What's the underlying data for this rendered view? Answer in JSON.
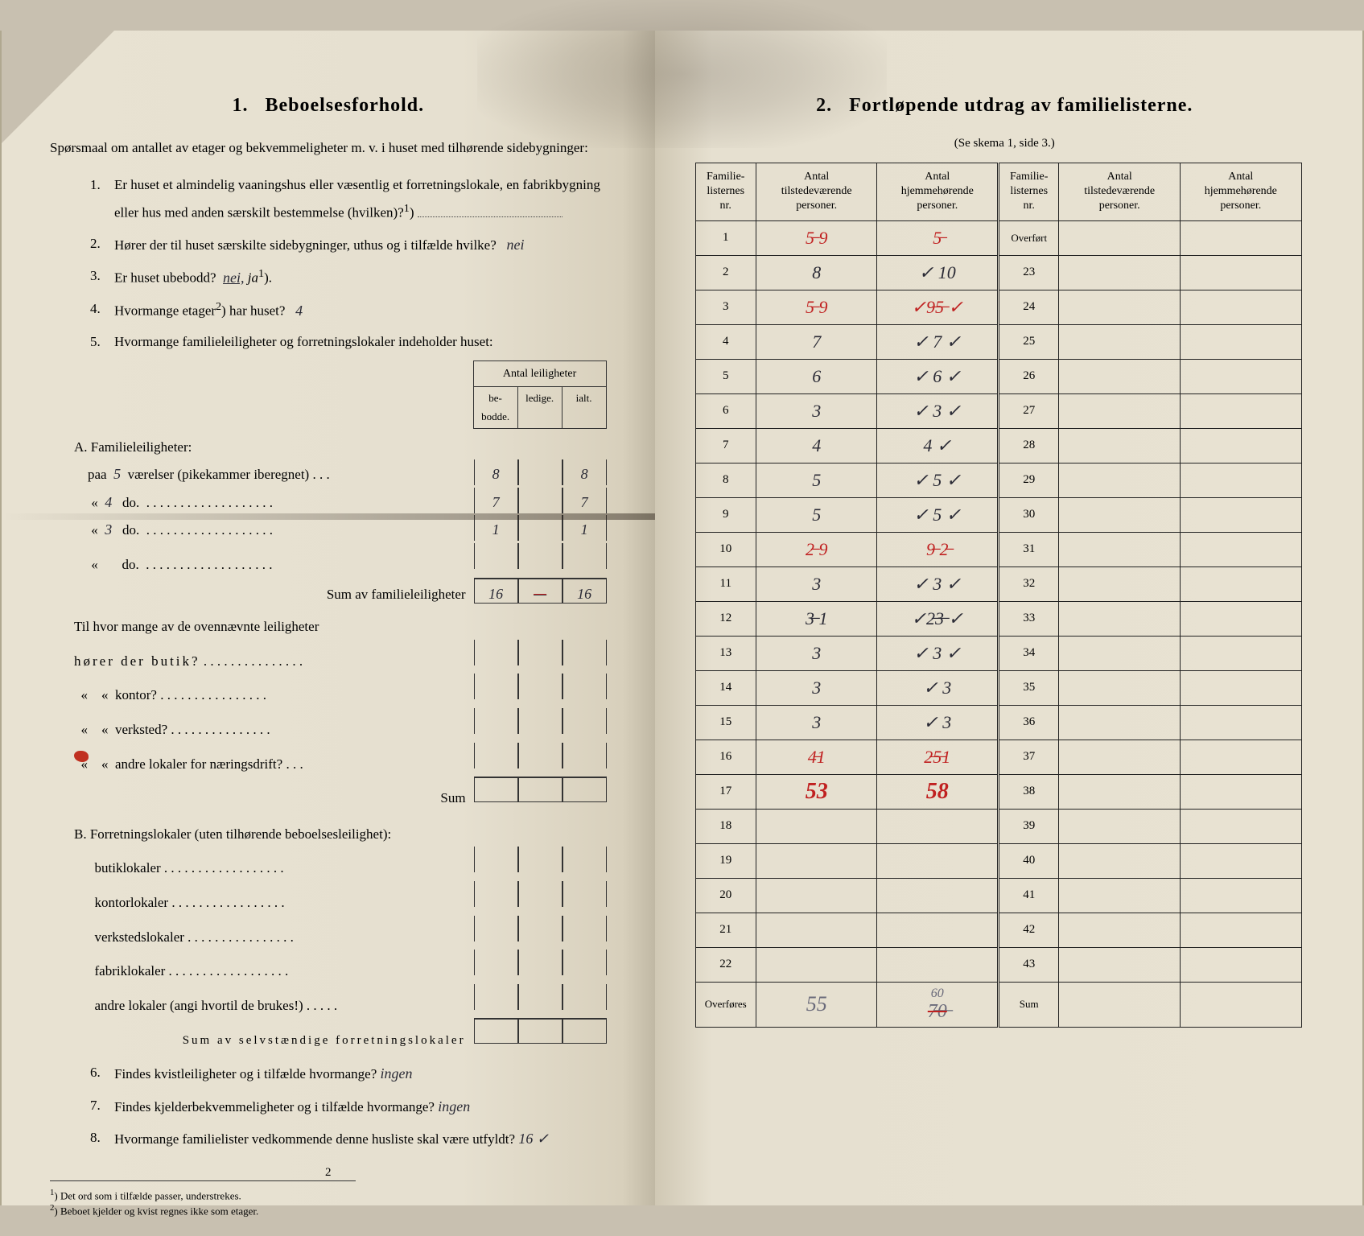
{
  "left": {
    "heading_num": "1.",
    "heading": "Beboelsesforhold.",
    "intro": "Spørsmaal om antallet av etager og bekvemmeligheter m. v. i huset med tilhørende sidebygninger:",
    "q1": "Er huset et almindelig vaaningshus eller væsentlig et forretningslokale, en fabrikbygning eller hus med anden særskilt bestemmelse (hvilken)?",
    "q1_sup": "1",
    "q2": "Hører der til huset særskilte sidebygninger, uthus og i tilfælde hvilke?",
    "q2_answer": "nei",
    "q3": "Er huset ubebodd?",
    "q3_opt_nei": "nei,",
    "q3_opt_ja": "ja",
    "q3_sup": "1",
    "q4": "Hvormange etager",
    "q4_sup": "2",
    "q4_rest": ") har huset?",
    "q4_answer": "4",
    "q5": "Hvormange familieleiligheter og forretningslokaler indeholder huset:",
    "small_header": "Antal leiligheter",
    "th_bebodde": "be-\nbodde.",
    "th_ledige": "ledige.",
    "th_ialt": "ialt.",
    "A_label": "A. Familieleiligheter:",
    "A_paa": "paa",
    "A_room_fill": [
      "5",
      "4",
      "3",
      ""
    ],
    "A_line1": "værelser (pikekammer iberegnet) . . .",
    "A_do": "do.",
    "A_vals": [
      {
        "b": "8",
        "l": "",
        "i": "8"
      },
      {
        "b": "7",
        "l": "",
        "i": "7"
      },
      {
        "b": "1",
        "l": "",
        "i": "1"
      },
      {
        "b": "",
        "l": "",
        "i": ""
      }
    ],
    "A_sum_label": "Sum av familieleiligheter",
    "A_sum": {
      "b": "16",
      "l": "",
      "i": "16"
    },
    "til_hvor": "Til hvor mange av de ovennævnte leiligheter",
    "horer": "hører der butik?",
    "kontor": "kontor?",
    "verksted": "verksted?",
    "andre_lok": "andre lokaler for næringsdrift?",
    "sum_label": "Sum",
    "B_label": "B. Forretningslokaler (uten tilhørende beboelsesleilighet):",
    "B_items": [
      "butiklokaler",
      "kontorlokaler",
      "verkstedslokaler",
      "fabriklokaler",
      "andre lokaler (angi hvortil de brukes!)"
    ],
    "B_sum": "Sum av selvstændige forretningslokaler",
    "q6": "Findes kvistleiligheter og i tilfælde hvormange?",
    "q6_answer": "ingen",
    "q7": "Findes kjelderbekvemmeligheter og i tilfælde hvormange?",
    "q7_answer": "ingen",
    "q8": "Hvormange familielister vedkommende denne husliste skal være utfyldt?",
    "q8_answer": "16 ✓",
    "foot1_sup": "1",
    "foot1": "Det ord som i tilfælde passer, understrekes.",
    "foot2_sup": "2",
    "foot2": "Beboet kjelder og kvist regnes ikke som etager.",
    "pagenum": "2"
  },
  "right": {
    "heading_num": "2.",
    "heading": "Fortløpende utdrag av familielisterne.",
    "sub": "(Se skema 1, side 3.)",
    "th_nr": "Familie-\nlisternes\nnr.",
    "th_tilstede": "Antal\ntilstedeværende\npersoner.",
    "th_hjemme": "Antal\nhjemmehørende\npersoner.",
    "overfort": "Overført",
    "rowsA": [
      {
        "nr": "1",
        "a": "5̶ 9",
        "b": "5̶",
        "style": "red"
      },
      {
        "nr": "2",
        "a": "8",
        "b": "✓ 10"
      },
      {
        "nr": "3",
        "a": "5̶ 9",
        "b": "✓9̶5̶ ✓",
        "style": "red"
      },
      {
        "nr": "4",
        "a": "7",
        "b": "✓ 7 ✓"
      },
      {
        "nr": "5",
        "a": "6",
        "b": "✓ 6 ✓"
      },
      {
        "nr": "6",
        "a": "3",
        "b": "✓ 3 ✓"
      },
      {
        "nr": "7",
        "a": "4",
        "b": "4 ✓"
      },
      {
        "nr": "8",
        "a": "5",
        "b": "✓ 5 ✓"
      },
      {
        "nr": "9",
        "a": "5",
        "b": "✓ 5 ✓"
      },
      {
        "nr": "10",
        "a": "2̶ 9",
        "b": "9̶ 2̶",
        "style": "red"
      },
      {
        "nr": "11",
        "a": "3",
        "b": "✓ 3 ✓"
      },
      {
        "nr": "12",
        "a": "3̶ 1",
        "b": "✓2̶3̶ ✓",
        "style": "mix"
      },
      {
        "nr": "13",
        "a": "3",
        "b": "✓ 3 ✓"
      },
      {
        "nr": "14",
        "a": "3",
        "b": "✓ 3"
      },
      {
        "nr": "15",
        "a": "3",
        "b": "✓ 3"
      },
      {
        "nr": "16",
        "a": "4̶1",
        "b": "2̶5̶1",
        "style": "red"
      },
      {
        "nr": "17",
        "a": "53",
        "b": "58",
        "style": "redbold"
      },
      {
        "nr": "18",
        "a": "",
        "b": ""
      },
      {
        "nr": "19",
        "a": "",
        "b": ""
      },
      {
        "nr": "20",
        "a": "",
        "b": ""
      },
      {
        "nr": "21",
        "a": "",
        "b": ""
      },
      {
        "nr": "22",
        "a": "",
        "b": ""
      }
    ],
    "rowsB_nr": [
      "23",
      "24",
      "25",
      "26",
      "27",
      "28",
      "29",
      "30",
      "31",
      "32",
      "33",
      "34",
      "35",
      "36",
      "37",
      "38",
      "39",
      "40",
      "41",
      "42",
      "43"
    ],
    "overføres": "Overføres",
    "over_a": "55",
    "over_b_top": "60",
    "over_b": "7̶0̶",
    "sum": "Sum"
  }
}
